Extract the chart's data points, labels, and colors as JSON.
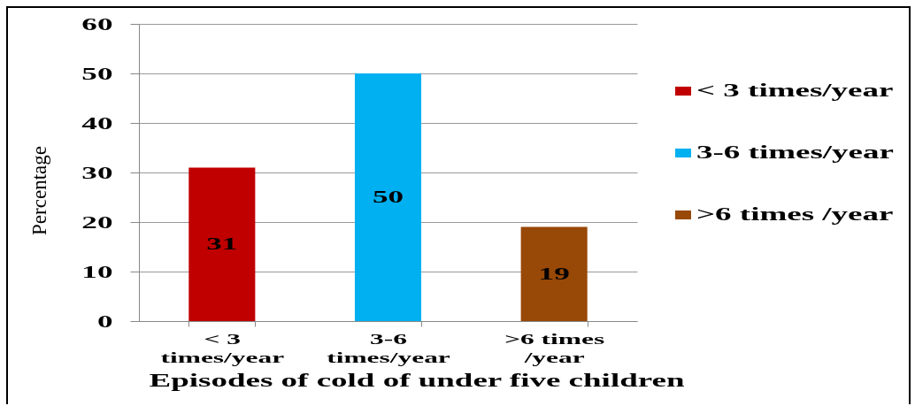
{
  "chart_data": {
    "type": "bar",
    "xlabel": "Episodes of cold of under five children",
    "ylabel": "Percentage",
    "categories": [
      "< 3 times/year",
      "3-6 times/year",
      ">6 times /year"
    ],
    "series": [
      {
        "name": "< 3 times/year",
        "color": "#c00000",
        "values": [
          31,
          null,
          null
        ]
      },
      {
        "name": "3-6 times/year",
        "color": "#00b0f0",
        "values": [
          null,
          50,
          null
        ]
      },
      {
        "name": ">6 times /year",
        "color": "#984807",
        "values": [
          null,
          null,
          19
        ]
      }
    ],
    "ylim": [
      0,
      60
    ],
    "yticks": [
      0,
      10,
      20,
      30,
      40,
      50,
      60
    ],
    "grid": "y",
    "legend": "right",
    "data_labels": true
  }
}
